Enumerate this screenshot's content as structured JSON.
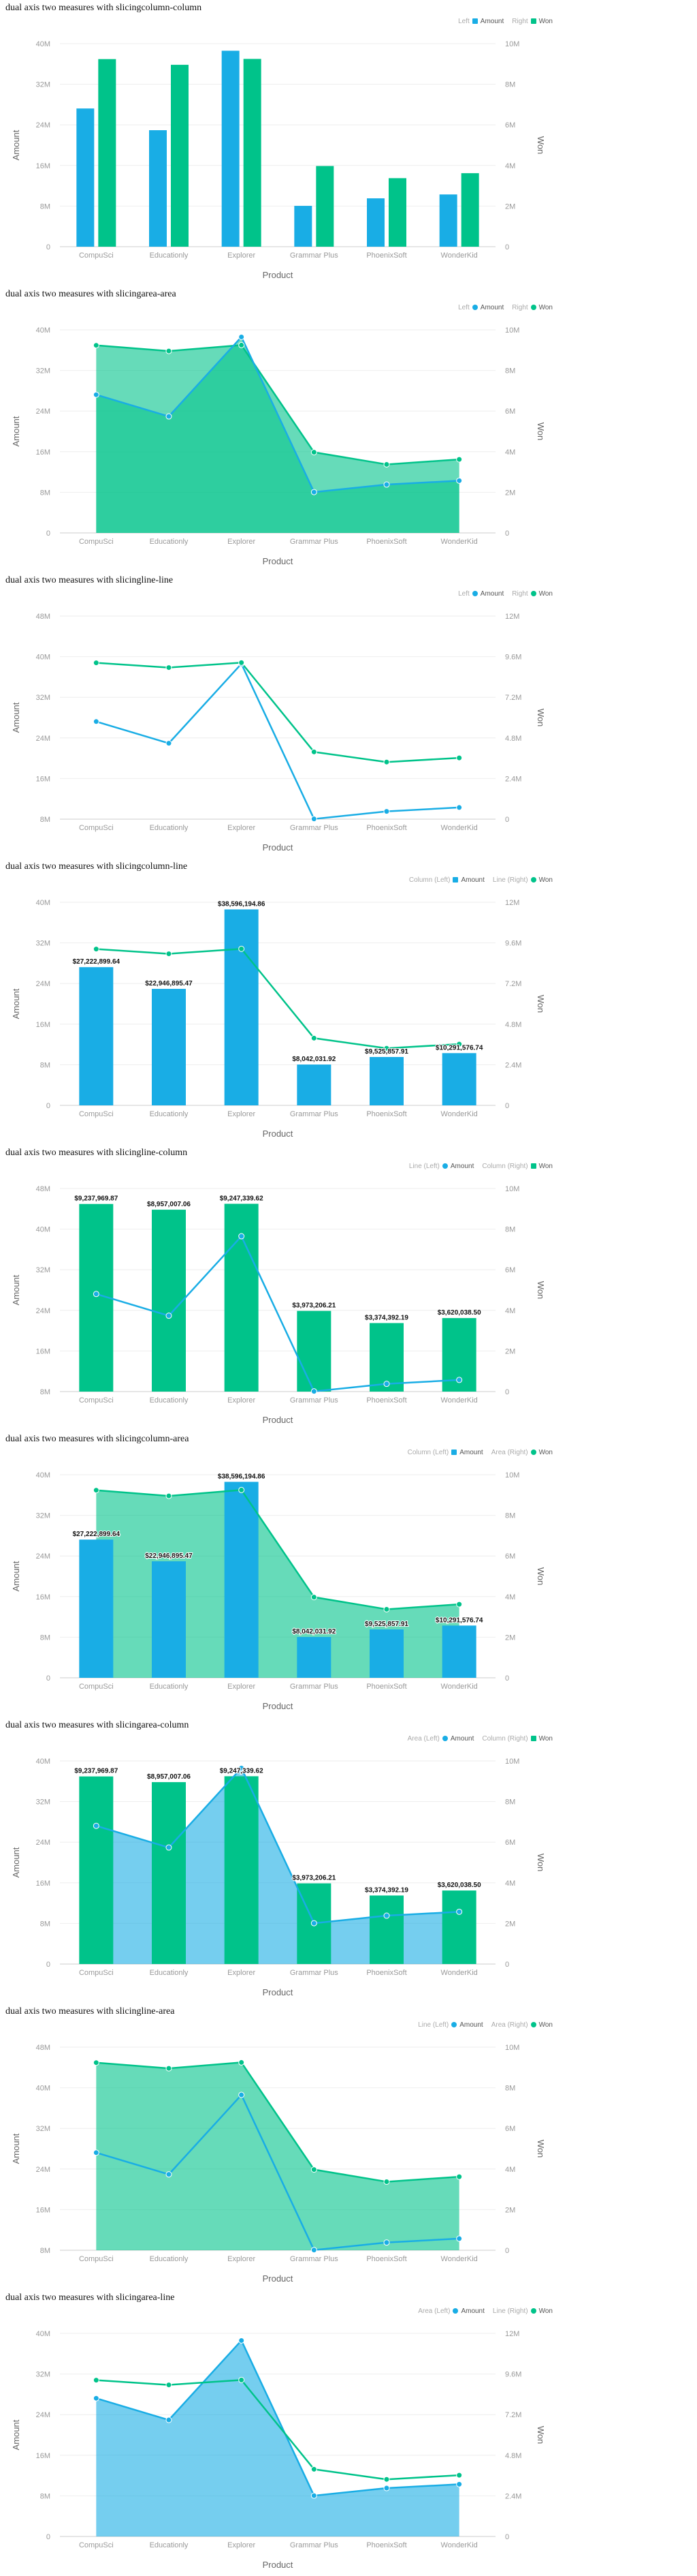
{
  "colors": {
    "amount": "#19ade5",
    "won": "#00c38a",
    "grid": "#eeeeee"
  },
  "chart_data": [
    {
      "title": "dual axis two measures with slicingcolumn-column",
      "type": "column-column",
      "categories": [
        "CompuSci",
        "Educationly",
        "Explorer",
        "Grammar Plus",
        "PhoenixSoft",
        "WonderKid"
      ],
      "xlabel": "Product",
      "legend": {
        "left_title": "Left",
        "right_title": "Right"
      },
      "left": {
        "name": "Amount",
        "label": "Amount",
        "mark": "column",
        "values": [
          27222899.64,
          22946895.47,
          38596194.86,
          8042031.92,
          9525857.91,
          10291576.74
        ],
        "ticks": [
          "0",
          "8M",
          "16M",
          "24M",
          "32M",
          "40M"
        ],
        "max": 40000000,
        "min": 0,
        "data_labels": false
      },
      "right": {
        "name": "Won",
        "label": "Won",
        "mark": "column",
        "values": [
          9237969.87,
          8957007.06,
          9247339.62,
          3973206.21,
          3374392.19,
          3620038.5
        ],
        "ticks": [
          "0",
          "2M",
          "4M",
          "6M",
          "8M",
          "10M"
        ],
        "max": 10000000,
        "min": 0,
        "data_labels": false
      }
    },
    {
      "title": "dual axis two measures with slicingarea-area",
      "type": "area-area",
      "categories": [
        "CompuSci",
        "Educationly",
        "Explorer",
        "Grammar Plus",
        "PhoenixSoft",
        "WonderKid"
      ],
      "xlabel": "Product",
      "legend": {
        "left_title": "Left",
        "right_title": "Right"
      },
      "left": {
        "name": "Amount",
        "label": "Amount",
        "mark": "area",
        "values": [
          27222899.64,
          22946895.47,
          38596194.86,
          8042031.92,
          9525857.91,
          10291576.74
        ],
        "ticks": [
          "0",
          "8M",
          "16M",
          "24M",
          "32M",
          "40M"
        ],
        "max": 40000000,
        "min": 0,
        "data_labels": false
      },
      "right": {
        "name": "Won",
        "label": "Won",
        "mark": "area",
        "values": [
          9237969.87,
          8957007.06,
          9247339.62,
          3973206.21,
          3374392.19,
          3620038.5
        ],
        "ticks": [
          "0",
          "2M",
          "4M",
          "6M",
          "8M",
          "10M"
        ],
        "max": 10000000,
        "min": 0,
        "data_labels": false
      }
    },
    {
      "title": "dual axis two measures with slicingline-line",
      "type": "line-line",
      "categories": [
        "CompuSci",
        "Educationly",
        "Explorer",
        "Grammar Plus",
        "PhoenixSoft",
        "WonderKid"
      ],
      "xlabel": "Product",
      "legend": {
        "left_title": "Left",
        "right_title": "Right"
      },
      "left": {
        "name": "Amount",
        "label": "Amount",
        "mark": "line",
        "values": [
          27222899.64,
          22946895.47,
          38596194.86,
          8042031.92,
          9525857.91,
          10291576.74
        ],
        "ticks": [
          "8M",
          "16M",
          "24M",
          "32M",
          "40M",
          "48M"
        ],
        "max": 48000000,
        "min": 8000000,
        "data_labels": false
      },
      "right": {
        "name": "Won",
        "label": "Won",
        "mark": "line",
        "values": [
          9237969.87,
          8957007.06,
          9247339.62,
          3973206.21,
          3374392.19,
          3620038.5
        ],
        "ticks": [
          "0",
          "2.4M",
          "4.8M",
          "7.2M",
          "9.6M",
          "12M"
        ],
        "max": 12000000,
        "min": 0,
        "data_labels": false
      }
    },
    {
      "title": "dual axis two measures with slicingcolumn-line",
      "type": "column-line",
      "categories": [
        "CompuSci",
        "Educationly",
        "Explorer",
        "Grammar Plus",
        "PhoenixSoft",
        "WonderKid"
      ],
      "xlabel": "Product",
      "legend": {
        "left_title": "Column (Left)",
        "right_title": "Line (Right)"
      },
      "left": {
        "name": "Amount",
        "label": "Amount",
        "mark": "column",
        "values": [
          27222899.64,
          22946895.47,
          38596194.86,
          8042031.92,
          9525857.91,
          10291576.74
        ],
        "labels": [
          "$27,222,899.64",
          "$22,946,895.47",
          "$38,596,194.86",
          "$8,042,031.92",
          "$9,525,857.91",
          "$10,291,576.74"
        ],
        "ticks": [
          "0",
          "8M",
          "16M",
          "24M",
          "32M",
          "40M"
        ],
        "max": 40000000,
        "min": 0,
        "data_labels": true
      },
      "right": {
        "name": "Won",
        "label": "Won",
        "mark": "line",
        "values": [
          9237969.87,
          8957007.06,
          9247339.62,
          3973206.21,
          3374392.19,
          3620038.5
        ],
        "ticks": [
          "0",
          "2.4M",
          "4.8M",
          "7.2M",
          "9.6M",
          "12M"
        ],
        "max": 12000000,
        "min": 0,
        "data_labels": false
      }
    },
    {
      "title": "dual axis two measures with slicingline-column",
      "type": "line-column",
      "categories": [
        "CompuSci",
        "Educationly",
        "Explorer",
        "Grammar Plus",
        "PhoenixSoft",
        "WonderKid"
      ],
      "xlabel": "Product",
      "legend": {
        "left_title": "Line (Left)",
        "right_title": "Column (Right)"
      },
      "left": {
        "name": "Amount",
        "label": "Amount",
        "mark": "line",
        "values": [
          27222899.64,
          22946895.47,
          38596194.86,
          8042031.92,
          9525857.91,
          10291576.74
        ],
        "ticks": [
          "8M",
          "16M",
          "24M",
          "32M",
          "40M",
          "48M"
        ],
        "max": 48000000,
        "min": 8000000,
        "data_labels": false
      },
      "right": {
        "name": "Won",
        "label": "Won",
        "mark": "column",
        "values": [
          9237969.87,
          8957007.06,
          9247339.62,
          3973206.21,
          3374392.19,
          3620038.5
        ],
        "labels": [
          "$9,237,969.87",
          "$8,957,007.06",
          "$9,247,339.62",
          "$3,973,206.21",
          "$3,374,392.19",
          "$3,620,038.50"
        ],
        "ticks": [
          "0",
          "2M",
          "4M",
          "6M",
          "8M",
          "10M"
        ],
        "max": 10000000,
        "min": 0,
        "data_labels": true
      }
    },
    {
      "title": "dual axis two measures with slicingcolumn-area",
      "type": "column-area",
      "categories": [
        "CompuSci",
        "Educationly",
        "Explorer",
        "Grammar Plus",
        "PhoenixSoft",
        "WonderKid"
      ],
      "xlabel": "Product",
      "legend": {
        "left_title": "Column (Left)",
        "right_title": "Area (Right)"
      },
      "left": {
        "name": "Amount",
        "label": "Amount",
        "mark": "column",
        "values": [
          27222899.64,
          22946895.47,
          38596194.86,
          8042031.92,
          9525857.91,
          10291576.74
        ],
        "labels": [
          "$27,222,899.64",
          "$22,946,895.47",
          "$38,596,194.86",
          "$8,042,031.92",
          "$9,525,857.91",
          "$10,291,576.74"
        ],
        "ticks": [
          "0",
          "8M",
          "16M",
          "24M",
          "32M",
          "40M"
        ],
        "max": 40000000,
        "min": 0,
        "data_labels": true
      },
      "right": {
        "name": "Won",
        "label": "Won",
        "mark": "area",
        "values": [
          9237969.87,
          8957007.06,
          9247339.62,
          3973206.21,
          3374392.19,
          3620038.5
        ],
        "ticks": [
          "0",
          "2M",
          "4M",
          "6M",
          "8M",
          "10M"
        ],
        "max": 10000000,
        "min": 0,
        "data_labels": false
      }
    },
    {
      "title": "dual axis two measures with slicingarea-column",
      "type": "area-column",
      "categories": [
        "CompuSci",
        "Educationly",
        "Explorer",
        "Grammar Plus",
        "PhoenixSoft",
        "WonderKid"
      ],
      "xlabel": "Product",
      "legend": {
        "left_title": "Area (Left)",
        "right_title": "Column (Right)"
      },
      "left": {
        "name": "Amount",
        "label": "Amount",
        "mark": "area",
        "values": [
          27222899.64,
          22946895.47,
          38596194.86,
          8042031.92,
          9525857.91,
          10291576.74
        ],
        "ticks": [
          "0",
          "8M",
          "16M",
          "24M",
          "32M",
          "40M"
        ],
        "max": 40000000,
        "min": 0,
        "data_labels": false
      },
      "right": {
        "name": "Won",
        "label": "Won",
        "mark": "column",
        "values": [
          9237969.87,
          8957007.06,
          9247339.62,
          3973206.21,
          3374392.19,
          3620038.5
        ],
        "labels": [
          "$9,237,969.87",
          "$8,957,007.06",
          "$9,247,339.62",
          "$3,973,206.21",
          "$3,374,392.19",
          "$3,620,038.50"
        ],
        "ticks": [
          "0",
          "2M",
          "4M",
          "6M",
          "8M",
          "10M"
        ],
        "max": 10000000,
        "min": 0,
        "data_labels": true
      }
    },
    {
      "title": "dual axis two measures with slicingline-area",
      "type": "line-area",
      "categories": [
        "CompuSci",
        "Educationly",
        "Explorer",
        "Grammar Plus",
        "PhoenixSoft",
        "WonderKid"
      ],
      "xlabel": "Product",
      "legend": {
        "left_title": "Line (Left)",
        "right_title": "Area (Right)"
      },
      "left": {
        "name": "Amount",
        "label": "Amount",
        "mark": "line",
        "values": [
          27222899.64,
          22946895.47,
          38596194.86,
          8042031.92,
          9525857.91,
          10291576.74
        ],
        "ticks": [
          "8M",
          "16M",
          "24M",
          "32M",
          "40M",
          "48M"
        ],
        "max": 48000000,
        "min": 8000000,
        "data_labels": false
      },
      "right": {
        "name": "Won",
        "label": "Won",
        "mark": "area",
        "values": [
          9237969.87,
          8957007.06,
          9247339.62,
          3973206.21,
          3374392.19,
          3620038.5
        ],
        "ticks": [
          "0",
          "2M",
          "4M",
          "6M",
          "8M",
          "10M"
        ],
        "max": 10000000,
        "min": 0,
        "data_labels": false
      }
    },
    {
      "title": "dual axis two measures with slicingarea-line",
      "type": "area-line",
      "categories": [
        "CompuSci",
        "Educationly",
        "Explorer",
        "Grammar Plus",
        "PhoenixSoft",
        "WonderKid"
      ],
      "xlabel": "Product",
      "legend": {
        "left_title": "Area (Left)",
        "right_title": "Line (Right)"
      },
      "left": {
        "name": "Amount",
        "label": "Amount",
        "mark": "area",
        "values": [
          27222899.64,
          22946895.47,
          38596194.86,
          8042031.92,
          9525857.91,
          10291576.74
        ],
        "ticks": [
          "0",
          "8M",
          "16M",
          "24M",
          "32M",
          "40M"
        ],
        "max": 40000000,
        "min": 0,
        "data_labels": false
      },
      "right": {
        "name": "Won",
        "label": "Won",
        "mark": "line",
        "values": [
          9237969.87,
          8957007.06,
          9247339.62,
          3973206.21,
          3374392.19,
          3620038.5
        ],
        "ticks": [
          "0",
          "2.4M",
          "4.8M",
          "7.2M",
          "9.6M",
          "12M"
        ],
        "max": 12000000,
        "min": 0,
        "data_labels": false
      }
    }
  ]
}
